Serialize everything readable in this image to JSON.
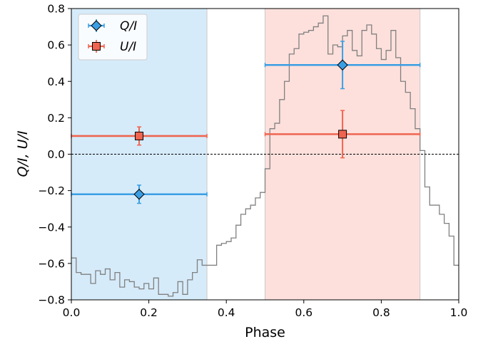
{
  "chart_data": {
    "type": "scatter",
    "xlabel": "Phase",
    "ylabel": "Q/I, U/I",
    "xlim": [
      0.0,
      1.0
    ],
    "ylim": [
      -0.8,
      0.8
    ],
    "xticks": [
      "0.0",
      "0.2",
      "0.4",
      "0.6",
      "0.8",
      "1.0"
    ],
    "yticks": [
      "−0.8",
      "−0.6",
      "−0.4",
      "−0.2",
      "0.0",
      "0.2",
      "0.4",
      "0.6",
      "0.8"
    ],
    "grid": false,
    "legend": {
      "placement": "top-left",
      "entries": [
        "Q/I",
        "U/I"
      ]
    },
    "shaded_regions": [
      {
        "x0": 0.0,
        "x1": 0.35,
        "color": "#d6ebfa"
      },
      {
        "x0": 0.5,
        "x1": 0.9,
        "color": "#fde0dc"
      }
    ],
    "reference_line": {
      "y": 0.0,
      "style": "dashed",
      "color": "#000000"
    },
    "series": [
      {
        "name": "Q/I",
        "marker": "diamond",
        "color": "#3a9ee4",
        "points": [
          {
            "x": 0.175,
            "y": -0.22,
            "xerr_low": 0.175,
            "xerr_high": 0.175,
            "yerr": 0.05
          },
          {
            "x": 0.7,
            "y": 0.49,
            "xerr_low": 0.2,
            "xerr_high": 0.2,
            "yerr": 0.13
          }
        ]
      },
      {
        "name": "U/I",
        "marker": "square",
        "color": "#ef6550",
        "points": [
          {
            "x": 0.175,
            "y": 0.1,
            "xerr_low": 0.175,
            "xerr_high": 0.175,
            "yerr": 0.05
          },
          {
            "x": 0.7,
            "y": 0.11,
            "xerr_low": 0.2,
            "xerr_high": 0.2,
            "yerr": 0.13
          }
        ]
      }
    ],
    "light_curve": {
      "style": "step",
      "color": "#808080",
      "bin_width": 0.0125,
      "values": [
        -0.57,
        -0.65,
        -0.66,
        -0.66,
        -0.71,
        -0.64,
        -0.66,
        -0.63,
        -0.69,
        -0.65,
        -0.73,
        -0.69,
        -0.7,
        -0.73,
        -0.74,
        -0.71,
        -0.74,
        -0.68,
        -0.77,
        -0.77,
        -0.78,
        -0.76,
        -0.7,
        -0.77,
        -0.69,
        -0.65,
        -0.58,
        -0.61,
        -0.61,
        -0.61,
        -0.5,
        -0.49,
        -0.48,
        -0.46,
        -0.39,
        -0.33,
        -0.3,
        -0.28,
        -0.24,
        -0.21,
        -0.08,
        0.14,
        0.17,
        0.3,
        0.4,
        0.55,
        0.58,
        0.66,
        0.67,
        0.68,
        0.7,
        0.72,
        0.76,
        0.55,
        0.6,
        0.59,
        0.65,
        0.68,
        0.57,
        0.54,
        0.68,
        0.71,
        0.66,
        0.58,
        0.52,
        0.57,
        0.68,
        0.53,
        0.4,
        0.34,
        0.25,
        0.14,
        0.02,
        -0.18,
        -0.28,
        -0.28,
        -0.33,
        -0.38,
        -0.45,
        -0.61
      ]
    }
  }
}
